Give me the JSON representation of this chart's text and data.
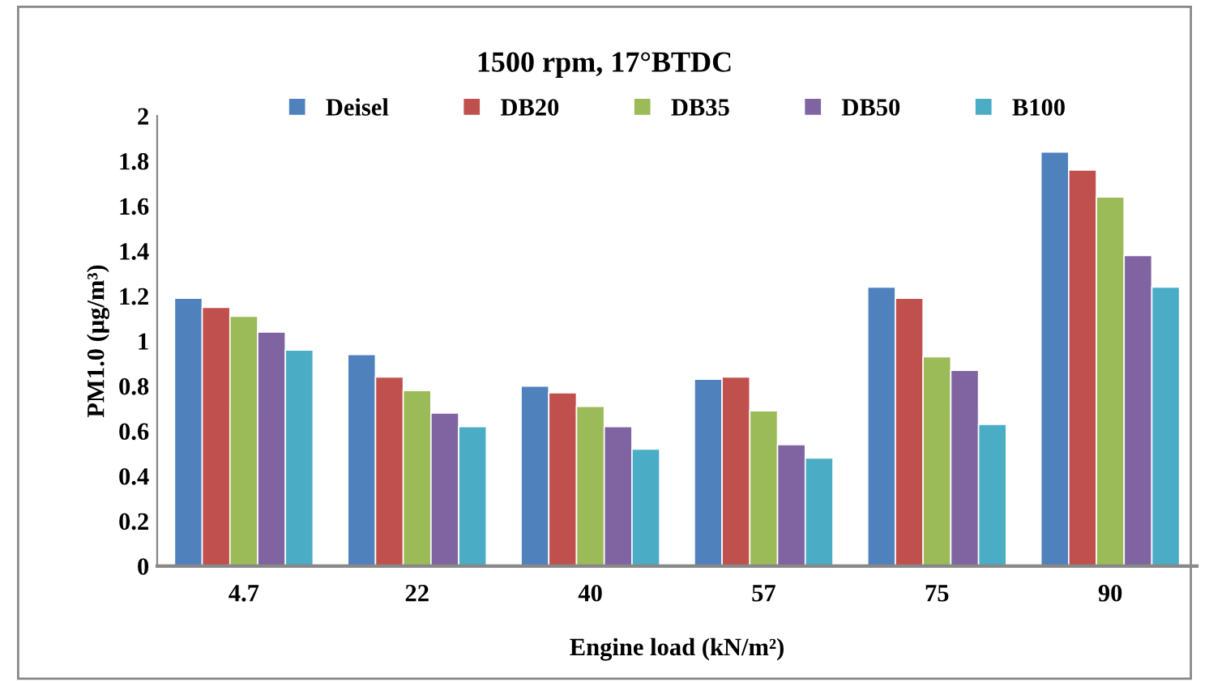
{
  "chart_data": {
    "type": "bar",
    "title": "1500 rpm, 17°BTDC",
    "xlabel": "Engine load (kN/m²)",
    "ylabel": "PM1.0 (μg/m³)",
    "categories": [
      "4.7",
      "22",
      "40",
      "57",
      "75",
      "90"
    ],
    "series": [
      {
        "name": "Deisel",
        "color": "#4f81bd",
        "values": [
          1.19,
          0.94,
          0.8,
          0.83,
          1.24,
          1.84
        ]
      },
      {
        "name": "DB20",
        "color": "#c0504d",
        "values": [
          1.15,
          0.84,
          0.77,
          0.84,
          1.19,
          1.76
        ]
      },
      {
        "name": "DB35",
        "color": "#9bbb59",
        "values": [
          1.11,
          0.78,
          0.71,
          0.69,
          0.93,
          1.64
        ]
      },
      {
        "name": "DB50",
        "color": "#8064a2",
        "values": [
          1.04,
          0.68,
          0.62,
          0.54,
          0.87,
          1.38
        ]
      },
      {
        "name": "B100",
        "color": "#4bacc6",
        "values": [
          0.96,
          0.62,
          0.52,
          0.48,
          0.63,
          1.24
        ]
      }
    ],
    "ylim": [
      0,
      2
    ],
    "yticks": [
      0,
      0.2,
      0.4,
      0.6,
      0.8,
      1,
      1.2,
      1.4,
      1.6,
      1.8,
      2
    ],
    "grid": false,
    "legend": "top"
  }
}
